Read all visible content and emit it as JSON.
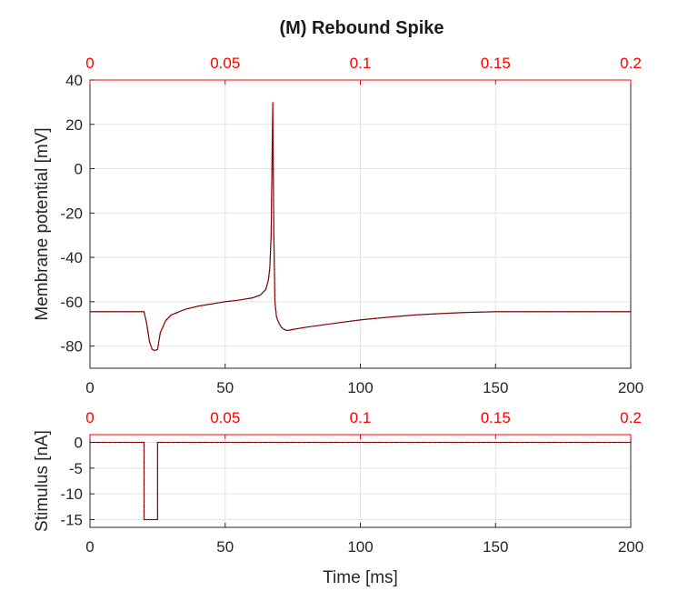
{
  "figure": {
    "title": "(M) Rebound Spike"
  },
  "chart_data": [
    {
      "type": "line",
      "panel": "membrane",
      "title": "(M) Rebound Spike",
      "xlabel": "",
      "ylabel": "Membrane potential [mV]",
      "xlim": [
        0,
        200
      ],
      "ylim": [
        -90,
        40
      ],
      "x_ticks": [
        0,
        50,
        100,
        150,
        200
      ],
      "y_ticks": [
        40,
        20,
        0,
        -20,
        -40,
        -60,
        -80
      ],
      "top_axis": {
        "lim": [
          0,
          0.2
        ],
        "ticks": [
          "0",
          "0.05",
          "0.1",
          "0.15",
          "0.2"
        ],
        "color": "#ff0000"
      },
      "grid": true,
      "series": [
        {
          "color": "#000000",
          "style": "solid",
          "x": [
            0,
            10,
            20,
            21,
            22,
            23,
            24,
            25,
            26,
            28,
            30,
            35,
            40,
            45,
            50,
            55,
            60,
            63,
            65,
            66,
            66.5,
            67,
            67.3,
            67.6,
            68,
            68.4,
            69,
            70,
            71,
            72,
            73,
            75,
            80,
            90,
            100,
            110,
            120,
            130,
            140,
            150,
            160,
            170,
            180,
            190,
            200
          ],
          "y": [
            -64.5,
            -64.5,
            -64.5,
            -70,
            -78,
            -81.5,
            -82,
            -81.5,
            -74,
            -68.5,
            -66,
            -63.5,
            -62,
            -61,
            -60,
            -59.3,
            -58.3,
            -57,
            -54.5,
            -50,
            -45,
            -30,
            0,
            30,
            -30,
            -60,
            -67,
            -70,
            -71.8,
            -72.6,
            -73,
            -72.5,
            -71.5,
            -69.8,
            -68.2,
            -67,
            -66,
            -65.3,
            -64.8,
            -64.5,
            -64.5,
            -64.5,
            -64.5,
            -64.5,
            -64.5
          ]
        },
        {
          "color": "#ff0000",
          "style": "dotted",
          "x": [
            0,
            10,
            20,
            21,
            22,
            23,
            24,
            25,
            26,
            28,
            30,
            35,
            40,
            45,
            50,
            55,
            60,
            63,
            65,
            66,
            66.5,
            67,
            67.3,
            67.6,
            68,
            68.4,
            69,
            70,
            71,
            72,
            73,
            75,
            80,
            90,
            100,
            110,
            120,
            130,
            140,
            150,
            160,
            170,
            180,
            190,
            200
          ],
          "y": [
            -64.5,
            -64.5,
            -64.5,
            -70,
            -78,
            -81.5,
            -82,
            -81.5,
            -74,
            -68.5,
            -66,
            -63.5,
            -62,
            -61,
            -60,
            -59.3,
            -58.3,
            -57,
            -54.5,
            -50,
            -45,
            -30,
            0,
            30,
            -30,
            -60,
            -67,
            -70,
            -71.8,
            -72.6,
            -73,
            -72.5,
            -71.5,
            -69.8,
            -68.2,
            -67,
            -66,
            -65.3,
            -64.8,
            -64.5,
            -64.5,
            -64.5,
            -64.5,
            -64.5,
            -64.5
          ]
        }
      ]
    },
    {
      "type": "line",
      "panel": "stimulus",
      "xlabel": "Time [ms]",
      "ylabel": "Stimulus [nA]",
      "xlim": [
        0,
        200
      ],
      "ylim": [
        -16.5,
        1.5
      ],
      "x_ticks": [
        0,
        50,
        100,
        150,
        200
      ],
      "y_ticks": [
        0,
        -5,
        -10,
        -15
      ],
      "top_axis": {
        "lim": [
          0,
          0.2
        ],
        "ticks": [
          "0",
          "0.05",
          "0.1",
          "0.15",
          "0.2"
        ],
        "color": "#ff0000"
      },
      "grid": true,
      "series": [
        {
          "color": "#000000",
          "style": "solid",
          "x": [
            0,
            20,
            20,
            25,
            25,
            200
          ],
          "y": [
            0,
            0,
            -15,
            -15,
            0,
            0
          ]
        },
        {
          "color": "#ff0000",
          "style": "dotted",
          "x": [
            0,
            20,
            20,
            25,
            25,
            200
          ],
          "y": [
            0,
            0,
            -15,
            -15,
            0,
            0
          ]
        }
      ]
    }
  ]
}
